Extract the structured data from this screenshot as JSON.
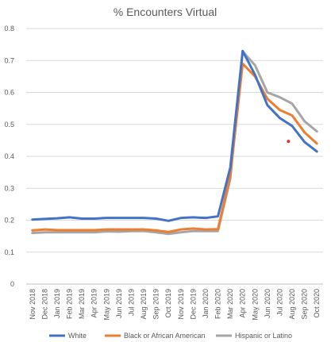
{
  "chart_data": {
    "type": "line",
    "title": "% Encounters Virtual",
    "categories": [
      "Nov 2018",
      "Dec 2018",
      "Jan 2019",
      "Feb 2019",
      "Mar 2019",
      "Apr 2019",
      "May 2019",
      "Jun 2019",
      "Jul 2019",
      "Aug 2019",
      "Sep 2019",
      "Oct 2019",
      "Nov 2019",
      "Dec 2019",
      "Jan 2020",
      "Feb 2020",
      "Mar 2020",
      "Apr 2020",
      "May 2020",
      "Jun 2020",
      "Jul 2020",
      "Aug 2020",
      "Sep 2020",
      "Oct 2020"
    ],
    "ylim": [
      0,
      0.8
    ],
    "yticks": [
      "0",
      "0.1",
      "0.2",
      "0.3",
      "0.4",
      "0.5",
      "0.6",
      "0.7",
      "0.8"
    ],
    "grid": true,
    "legend_position": "bottom",
    "series": [
      {
        "name": "White",
        "color": "#4472C4",
        "values": [
          0.202,
          0.204,
          0.206,
          0.209,
          0.205,
          0.205,
          0.207,
          0.207,
          0.207,
          0.207,
          0.205,
          0.198,
          0.207,
          0.209,
          0.207,
          0.212,
          0.365,
          0.73,
          0.655,
          0.56,
          0.52,
          0.495,
          0.445,
          0.415
        ]
      },
      {
        "name": "Black or African American",
        "color": "#ED7D31",
        "values": [
          0.168,
          0.171,
          0.169,
          0.169,
          0.169,
          0.169,
          0.171,
          0.171,
          0.171,
          0.171,
          0.168,
          0.163,
          0.171,
          0.174,
          0.171,
          0.172,
          0.34,
          0.69,
          0.65,
          0.58,
          0.545,
          0.528,
          0.475,
          0.44
        ]
      },
      {
        "name": "Hispanic or Latino",
        "color": "#A5A5A5",
        "values": [
          0.16,
          0.162,
          0.162,
          0.162,
          0.162,
          0.162,
          0.165,
          0.164,
          0.166,
          0.166,
          0.162,
          0.157,
          0.162,
          0.166,
          0.166,
          0.166,
          0.33,
          0.728,
          0.685,
          0.6,
          0.585,
          0.565,
          0.51,
          0.478
        ]
      }
    ],
    "annotations": [
      {
        "type": "point",
        "x_index": 20.7,
        "y": 0.447,
        "color": "#E0312A"
      }
    ]
  }
}
